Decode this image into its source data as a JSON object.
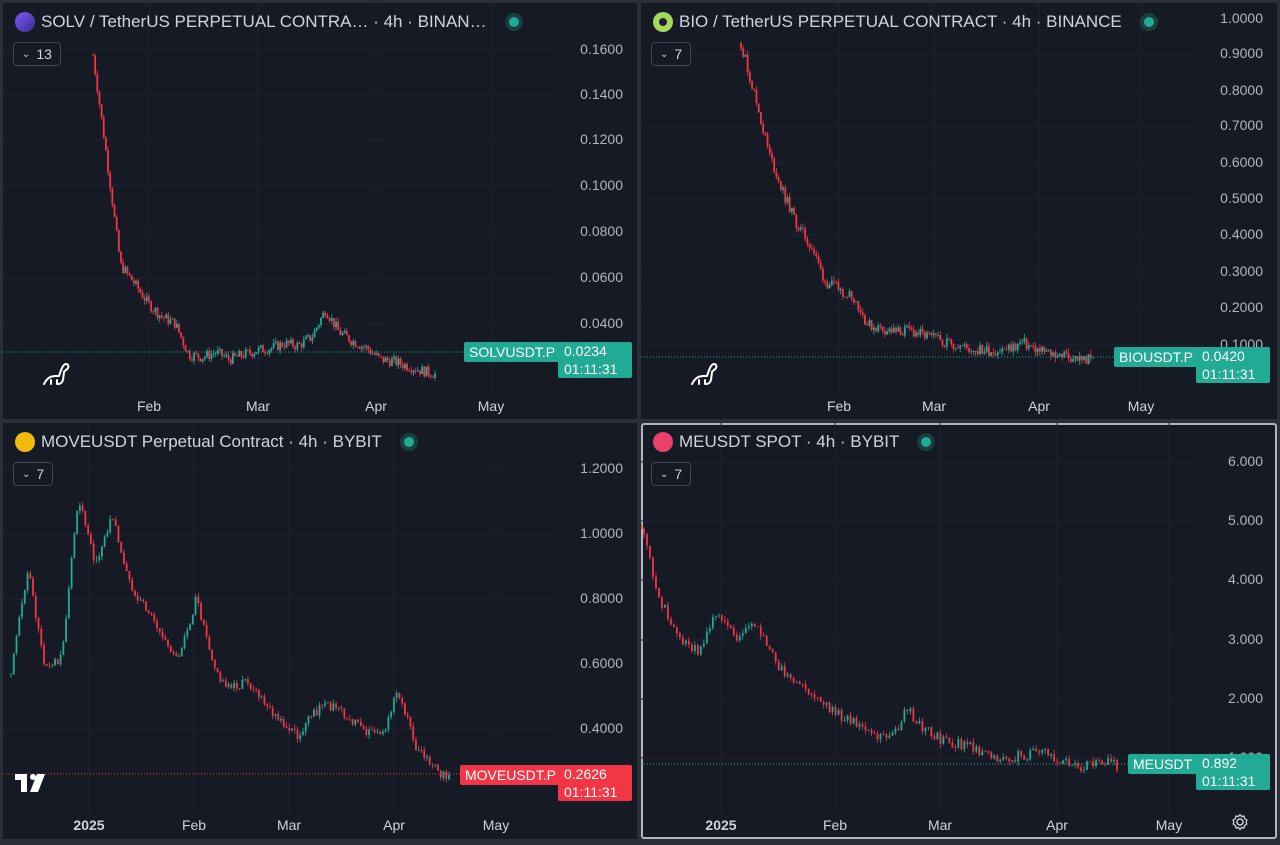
{
  "colors": {
    "bg": "#161a25",
    "grid": "#1f2330",
    "up": "#22ab94",
    "down": "#f23645",
    "text": "#d1d4dc",
    "axis": "#b2b5be"
  },
  "panes": [
    {
      "id": "solv",
      "title": "SOLV / TetherUS PERPETUAL CONTRA… · 4h · BINAN…",
      "coin_icon": "solv-coin-icon",
      "indicators": "13",
      "y_ticks": [
        "0.1600",
        "0.1400",
        "0.1200",
        "0.1000",
        "0.0800",
        "0.0600",
        "0.0400"
      ],
      "x_ticks": [
        {
          "label": "Feb",
          "bold": false
        },
        {
          "label": "Mar",
          "bold": false
        },
        {
          "label": "Apr",
          "bold": false
        },
        {
          "label": "May",
          "bold": false
        }
      ],
      "symbol": "SOLVUSDT.P",
      "price": "0.0234",
      "countdown": "01:11:31",
      "tag_color": "#22ab94",
      "logo_icon": "dino-icon",
      "series": [
        0.165,
        0.12,
        0.072,
        0.064,
        0.055,
        0.049,
        0.046,
        0.032,
        0.031,
        0.033,
        0.03,
        0.032,
        0.034,
        0.035,
        0.037,
        0.036,
        0.04,
        0.052,
        0.042,
        0.038,
        0.035,
        0.03,
        0.029,
        0.027,
        0.025,
        0.0234
      ],
      "ymin": 0.015,
      "ymax": 0.175
    },
    {
      "id": "bio",
      "title": "BIO / TetherUS PERPETUAL CONTRACT · 4h · BINANCE",
      "coin_icon": "bio-coin-icon",
      "indicators": "7",
      "y_ticks": [
        "1.0000",
        "0.9000",
        "0.8000",
        "0.7000",
        "0.6000",
        "0.5000",
        "0.4000",
        "0.3000",
        "0.2000",
        "0.1000"
      ],
      "x_ticks": [
        {
          "label": "Feb",
          "bold": false
        },
        {
          "label": "Mar",
          "bold": false
        },
        {
          "label": "Apr",
          "bold": false
        },
        {
          "label": "May",
          "bold": false
        }
      ],
      "symbol": "BIOUSDT.P",
      "price": "0.0420",
      "countdown": "01:11:31",
      "tag_color": "#22ab94",
      "logo_icon": "dino-icon",
      "series": [
        0.93,
        0.78,
        0.62,
        0.51,
        0.42,
        0.36,
        0.26,
        0.24,
        0.22,
        0.14,
        0.13,
        0.12,
        0.125,
        0.11,
        0.1,
        0.09,
        0.075,
        0.07,
        0.068,
        0.072,
        0.09,
        0.07,
        0.06,
        0.055,
        0.045,
        0.042
      ],
      "ymin": -0.05,
      "ymax": 1.02
    },
    {
      "id": "move",
      "title": "MOVEUSDT Perpetual Contract · 4h · BYBIT",
      "coin_icon": "move-coin-icon",
      "indicators": "7",
      "y_ticks": [
        "1.2000",
        "1.0000",
        "0.8000",
        "0.6000",
        "0.4000"
      ],
      "x_ticks": [
        {
          "label": "2025",
          "bold": true
        },
        {
          "label": "Feb",
          "bold": false
        },
        {
          "label": "Mar",
          "bold": false
        },
        {
          "label": "Apr",
          "bold": false
        },
        {
          "label": "May",
          "bold": false
        }
      ],
      "symbol": "MOVEUSDT.P",
      "price": "0.2626",
      "countdown": "01:11:31",
      "tag_color": "#f23645",
      "logo_icon": "tradingview-logo-icon",
      "series": [
        0.6,
        0.95,
        0.62,
        0.65,
        1.18,
        0.95,
        1.12,
        0.9,
        0.82,
        0.72,
        0.65,
        0.85,
        0.62,
        0.55,
        0.58,
        0.52,
        0.45,
        0.4,
        0.48,
        0.5,
        0.46,
        0.42,
        0.4,
        0.55,
        0.36,
        0.3,
        0.2626
      ],
      "ymin": 0.15,
      "ymax": 1.32
    },
    {
      "id": "me",
      "title": "MEUSDT SPOT · 4h · BYBIT",
      "coin_icon": "me-coin-icon",
      "indicators": "7",
      "y_ticks": [
        "6.000",
        "5.000",
        "4.000",
        "3.000",
        "2.000",
        "1.000"
      ],
      "x_ticks": [
        {
          "label": "2025",
          "bold": true
        },
        {
          "label": "Feb",
          "bold": false
        },
        {
          "label": "Mar",
          "bold": false
        },
        {
          "label": "Apr",
          "bold": false
        },
        {
          "label": "May",
          "bold": false
        }
      ],
      "symbol": "MEUSDT",
      "price": "0.892",
      "countdown": "01:11:31",
      "tag_color": "#22ab94",
      "logo_icon": "",
      "series": [
        5.3,
        3.9,
        3.2,
        3.0,
        3.7,
        3.2,
        3.5,
        2.8,
        2.4,
        2.2,
        1.9,
        1.7,
        1.5,
        1.3,
        1.9,
        1.5,
        1.3,
        1.25,
        1.1,
        1.0,
        1.05,
        1.15,
        1.0,
        0.85,
        0.95,
        0.892
      ],
      "ymin": 0.0,
      "ymax": 6.6
    }
  ],
  "settings_icon": "gear-icon"
}
